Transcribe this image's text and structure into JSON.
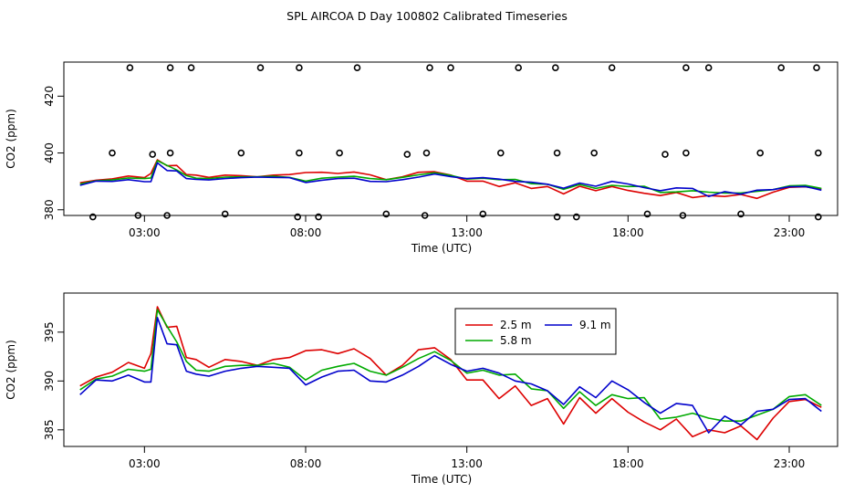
{
  "title": "SPL AIRCOA D  Day 100802  Calibrated Timeseries",
  "chart_data": [
    {
      "type": "line",
      "panel": "top",
      "xlabel": "Time (UTC)",
      "ylabel": "CO2 (ppm)",
      "xlim": [
        0.5,
        24.5
      ],
      "ylim": [
        378,
        432
      ],
      "xticks": [
        3,
        8,
        13,
        18,
        23
      ],
      "xtick_labels": [
        "03:00",
        "08:00",
        "13:00",
        "18:00",
        "23:00"
      ],
      "yticks": [
        380,
        400,
        420
      ],
      "ytick_labels": [
        "380",
        "400",
        "420"
      ],
      "legend": null,
      "scatter_markers": [
        {
          "x": 1.4,
          "y": 377.5
        },
        {
          "x": 2.0,
          "y": 400.0
        },
        {
          "x": 2.55,
          "y": 430.0
        },
        {
          "x": 2.8,
          "y": 378.0
        },
        {
          "x": 3.25,
          "y": 399.5
        },
        {
          "x": 3.7,
          "y": 378.0
        },
        {
          "x": 3.8,
          "y": 400.0
        },
        {
          "x": 3.8,
          "y": 430.0
        },
        {
          "x": 4.45,
          "y": 430.0
        },
        {
          "x": 5.5,
          "y": 378.5
        },
        {
          "x": 6.0,
          "y": 400.0
        },
        {
          "x": 6.6,
          "y": 430.0
        },
        {
          "x": 7.75,
          "y": 377.5
        },
        {
          "x": 7.8,
          "y": 400.0
        },
        {
          "x": 7.8,
          "y": 430.0
        },
        {
          "x": 8.4,
          "y": 377.5
        },
        {
          "x": 9.05,
          "y": 400.0
        },
        {
          "x": 9.6,
          "y": 430.0
        },
        {
          "x": 10.5,
          "y": 378.5
        },
        {
          "x": 11.15,
          "y": 399.5
        },
        {
          "x": 11.7,
          "y": 378.0
        },
        {
          "x": 11.75,
          "y": 400.0
        },
        {
          "x": 11.85,
          "y": 430.0
        },
        {
          "x": 12.5,
          "y": 430.0
        },
        {
          "x": 13.5,
          "y": 378.5
        },
        {
          "x": 14.05,
          "y": 400.0
        },
        {
          "x": 14.6,
          "y": 430.0
        },
        {
          "x": 15.75,
          "y": 430.0
        },
        {
          "x": 15.8,
          "y": 377.5
        },
        {
          "x": 15.8,
          "y": 400.0
        },
        {
          "x": 16.4,
          "y": 377.5
        },
        {
          "x": 16.95,
          "y": 400.0
        },
        {
          "x": 17.5,
          "y": 430.0
        },
        {
          "x": 18.6,
          "y": 378.5
        },
        {
          "x": 19.15,
          "y": 399.5
        },
        {
          "x": 19.7,
          "y": 378.0
        },
        {
          "x": 19.8,
          "y": 400.0
        },
        {
          "x": 19.8,
          "y": 430.0
        },
        {
          "x": 20.5,
          "y": 430.0
        },
        {
          "x": 21.5,
          "y": 378.5
        },
        {
          "x": 22.1,
          "y": 400.0
        },
        {
          "x": 22.75,
          "y": 430.0
        },
        {
          "x": 23.85,
          "y": 430.0
        },
        {
          "x": 23.9,
          "y": 377.5
        },
        {
          "x": 23.9,
          "y": 400.0
        }
      ]
    },
    {
      "type": "line",
      "panel": "bottom",
      "xlabel": "Time (UTC)",
      "ylabel": "CO2 (ppm)",
      "xlim": [
        0.5,
        24.5
      ],
      "ylim": [
        383.3,
        399.0
      ],
      "xticks": [
        3,
        8,
        13,
        18,
        23
      ],
      "xtick_labels": [
        "03:00",
        "08:00",
        "13:00",
        "18:00",
        "23:00"
      ],
      "yticks": [
        385,
        390,
        395
      ],
      "ytick_labels": [
        "385",
        "390",
        "395"
      ],
      "legend": {
        "position": "upper-middle",
        "entries": [
          {
            "label": "2.5 m",
            "color": "#dd0000"
          },
          {
            "label": "9.1 m",
            "color": "#0000cc"
          },
          {
            "label": "5.8 m",
            "color": "#00aa00"
          }
        ]
      }
    }
  ],
  "series_data": {
    "x": [
      1.0,
      1.5,
      2.0,
      2.5,
      3.0,
      3.2,
      3.4,
      3.7,
      4.0,
      4.3,
      4.6,
      5.0,
      5.5,
      6.0,
      6.5,
      7.0,
      7.5,
      8.0,
      8.5,
      9.0,
      9.5,
      10.0,
      10.5,
      11.0,
      11.5,
      12.0,
      12.5,
      13.0,
      13.5,
      14.0,
      14.5,
      15.0,
      15.5,
      16.0,
      16.5,
      17.0,
      17.5,
      18.0,
      18.5,
      19.0,
      19.5,
      20.0,
      20.5,
      21.0,
      21.5,
      22.0,
      22.5,
      23.0,
      23.5,
      24.0
    ],
    "series": [
      {
        "name": "2.5 m",
        "color": "#dd0000",
        "values": [
          389.5,
          390.4,
          390.9,
          391.9,
          391.3,
          392.8,
          397.6,
          395.5,
          395.6,
          392.4,
          392.2,
          391.4,
          392.2,
          392.0,
          391.6,
          392.2,
          392.4,
          393.1,
          393.2,
          392.8,
          393.3,
          392.3,
          390.6,
          391.6,
          393.2,
          393.4,
          392.2,
          390.1,
          390.1,
          388.2,
          389.5,
          387.5,
          388.2,
          385.6,
          388.3,
          386.7,
          388.2,
          386.8,
          385.8,
          385.0,
          386.1,
          384.3,
          385.0,
          384.7,
          385.4,
          384.0,
          386.2,
          387.9,
          388.1,
          387.3
        ]
      },
      {
        "name": "5.8 m",
        "color": "#00aa00",
        "values": [
          389.1,
          390.2,
          390.5,
          391.2,
          391.0,
          391.2,
          397.3,
          395.6,
          394.0,
          392.0,
          391.1,
          391.0,
          391.5,
          391.6,
          391.6,
          391.8,
          391.4,
          390.1,
          391.1,
          391.5,
          391.8,
          391.0,
          390.6,
          391.4,
          392.3,
          393.0,
          392.1,
          390.8,
          391.1,
          390.6,
          390.7,
          389.2,
          389.0,
          387.2,
          388.9,
          387.5,
          388.6,
          388.2,
          388.3,
          386.1,
          386.3,
          386.7,
          386.2,
          385.9,
          385.9,
          386.5,
          387.1,
          388.4,
          388.6,
          387.5
        ]
      },
      {
        "name": "9.1 m",
        "color": "#0000cc",
        "values": [
          388.6,
          390.1,
          390.0,
          390.6,
          389.9,
          389.9,
          396.5,
          393.8,
          393.7,
          391.0,
          390.7,
          390.5,
          391.0,
          391.3,
          391.5,
          391.4,
          391.3,
          389.6,
          390.4,
          391.0,
          391.1,
          390.0,
          389.9,
          390.6,
          391.5,
          392.6,
          391.7,
          391.0,
          391.3,
          390.8,
          390.0,
          389.7,
          389.0,
          387.6,
          389.4,
          388.3,
          390.0,
          389.1,
          387.8,
          386.7,
          387.7,
          387.5,
          384.7,
          386.4,
          385.5,
          386.9,
          387.1,
          388.1,
          388.2,
          386.9
        ]
      }
    ]
  }
}
